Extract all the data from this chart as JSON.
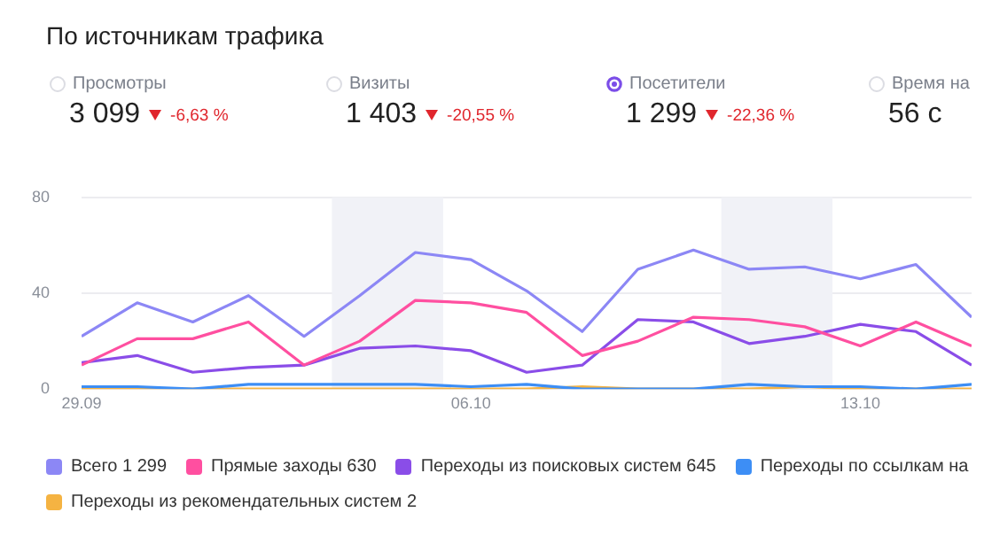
{
  "chart_data": {
    "type": "line",
    "title": "По источникам трафика",
    "annotations": [
      "Просмотры",
      "3 099",
      "-6,63 %",
      "Визиты",
      "1 403",
      "-20,55 %",
      "Посетители",
      "1 299",
      "-22,36 %",
      "Время на",
      "56 с"
    ],
    "x": [
      "--09-29",
      "--09-30",
      "--10-01",
      "--10-02",
      "--10-03",
      "--10-04",
      "--10-05",
      "--10-06",
      "--10-07",
      "--10-08",
      "--10-09",
      "--10-10",
      "--10-11",
      "--10-12",
      "--10-13",
      "--10-14",
      "--10-15"
    ],
    "series": [
      {
        "name": "Всего 1 299",
        "color": "#8c87f5",
        "values": [
          22,
          36,
          28,
          39,
          22,
          39,
          57,
          54,
          41,
          24,
          50,
          58,
          50,
          51,
          46,
          52,
          30
        ]
      },
      {
        "name": "Прямые заходы 630",
        "color": "#ff4fa0",
        "values": [
          10,
          21,
          21,
          28,
          10,
          20,
          37,
          36,
          32,
          14,
          20,
          30,
          29,
          26,
          18,
          28,
          18
        ]
      },
      {
        "name": "Переходы из поисковых систем 645",
        "color": "#8a4de8",
        "values": [
          11,
          14,
          7,
          9,
          10,
          17,
          18,
          16,
          7,
          10,
          29,
          28,
          19,
          22,
          27,
          24,
          10
        ]
      },
      {
        "name": "Переходы по ссылкам на",
        "color": "#3d8ef5",
        "values": [
          1,
          1,
          0,
          2,
          2,
          2,
          2,
          1,
          2,
          0,
          0,
          0,
          2,
          1,
          1,
          0,
          2
        ]
      },
      {
        "name": "Переходы из рекомендательных систем 2",
        "color": "#f5b342",
        "values": [
          0,
          0,
          0,
          0,
          0,
          0,
          0,
          0,
          0,
          1,
          0,
          0,
          0,
          1,
          0,
          0,
          0
        ]
      }
    ],
    "xlim": [
      "--09-29",
      "--10-15"
    ],
    "xticks": [
      {
        "value": "--09-29",
        "label": "29.09"
      },
      {
        "value": "--10-06",
        "label": "06.10"
      },
      {
        "value": "--10-13",
        "label": "13.10"
      }
    ],
    "ylim": [
      0,
      80
    ],
    "yticks": [
      0,
      40,
      80
    ],
    "bands": [
      {
        "axis": "x",
        "from": "--10-03T12:00",
        "to": "--10-05T12:00",
        "color": "#f1f2f7"
      },
      {
        "axis": "x",
        "from": "--10-10T12:00",
        "to": "--10-12T12:00",
        "color": "#f1f2f7"
      }
    ],
    "grid": "y",
    "legend": "bottom",
    "marker": "none",
    "line_style": "solid"
  }
}
